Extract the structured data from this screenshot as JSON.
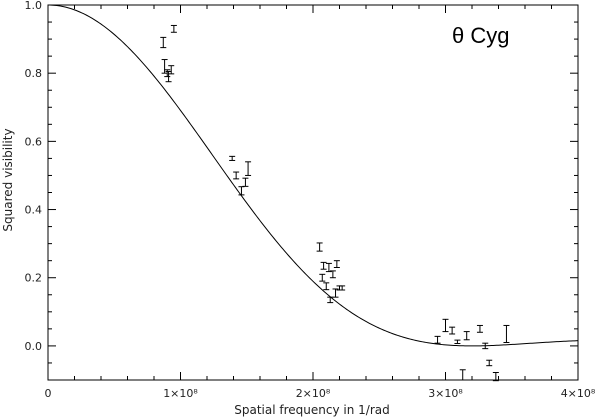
{
  "chart_data": {
    "type": "scatter",
    "title": "",
    "annotation": "θ Cyg",
    "xlabel": "Spatial frequency in 1/rad",
    "ylabel": "Squared visibility",
    "xlim": [
      0,
      400000000
    ],
    "ylim": [
      -0.1,
      1.0
    ],
    "grid": false,
    "x_ticks": [
      {
        "value": 0,
        "label": "0"
      },
      {
        "value": 100000000,
        "label": "1×10⁸"
      },
      {
        "value": 200000000,
        "label": "2×10⁸"
      },
      {
        "value": 300000000,
        "label": "3×10⁸"
      },
      {
        "value": 400000000,
        "label": "4×10⁸"
      }
    ],
    "y_ticks": [
      {
        "value": 0.0,
        "label": "0.0"
      },
      {
        "value": 0.2,
        "label": "0.2"
      },
      {
        "value": 0.4,
        "label": "0.4"
      },
      {
        "value": 0.6,
        "label": "0.6"
      },
      {
        "value": 0.8,
        "label": "0.8"
      },
      {
        "value": 1.0,
        "label": "1.0"
      }
    ],
    "series": [
      {
        "kind": "errorbar",
        "color": "#000000",
        "points": [
          {
            "x": 87000000,
            "y": 0.89,
            "err": 0.015
          },
          {
            "x": 88000000,
            "y": 0.82,
            "err": 0.02
          },
          {
            "x": 90000000,
            "y": 0.8,
            "err": 0.01
          },
          {
            "x": 91000000,
            "y": 0.79,
            "err": 0.015
          },
          {
            "x": 93000000,
            "y": 0.81,
            "err": 0.012
          },
          {
            "x": 95000000,
            "y": 0.93,
            "err": 0.01
          },
          {
            "x": 139000000,
            "y": 0.55,
            "err": 0.006
          },
          {
            "x": 142000000,
            "y": 0.5,
            "err": 0.01
          },
          {
            "x": 146000000,
            "y": 0.455,
            "err": 0.012
          },
          {
            "x": 149000000,
            "y": 0.48,
            "err": 0.012
          },
          {
            "x": 151000000,
            "y": 0.52,
            "err": 0.02
          },
          {
            "x": 205000000,
            "y": 0.29,
            "err": 0.012
          },
          {
            "x": 207000000,
            "y": 0.2,
            "err": 0.01
          },
          {
            "x": 208000000,
            "y": 0.235,
            "err": 0.01
          },
          {
            "x": 210000000,
            "y": 0.175,
            "err": 0.01
          },
          {
            "x": 212000000,
            "y": 0.23,
            "err": 0.012
          },
          {
            "x": 213000000,
            "y": 0.135,
            "err": 0.008
          },
          {
            "x": 215000000,
            "y": 0.21,
            "err": 0.01
          },
          {
            "x": 217000000,
            "y": 0.155,
            "err": 0.012
          },
          {
            "x": 218000000,
            "y": 0.24,
            "err": 0.01
          },
          {
            "x": 220000000,
            "y": 0.17,
            "err": 0.006
          },
          {
            "x": 222000000,
            "y": 0.17,
            "err": 0.006
          },
          {
            "x": 294000000,
            "y": 0.018,
            "err": 0.01
          },
          {
            "x": 300000000,
            "y": 0.06,
            "err": 0.018
          },
          {
            "x": 305000000,
            "y": 0.045,
            "err": 0.01
          },
          {
            "x": 309000000,
            "y": 0.012,
            "err": 0.005
          },
          {
            "x": 313000000,
            "y": -0.085,
            "err": 0.015
          },
          {
            "x": 316000000,
            "y": 0.03,
            "err": 0.012
          },
          {
            "x": 326000000,
            "y": 0.05,
            "err": 0.01
          },
          {
            "x": 330000000,
            "y": 0.0,
            "err": 0.008
          },
          {
            "x": 333000000,
            "y": -0.05,
            "err": 0.008
          },
          {
            "x": 338000000,
            "y": -0.09,
            "err": 0.012
          },
          {
            "x": 346000000,
            "y": 0.035,
            "err": 0.025
          }
        ]
      },
      {
        "kind": "line",
        "color": "#000000",
        "model": "uniform-disk",
        "first_null_x": 320000000
      }
    ]
  }
}
